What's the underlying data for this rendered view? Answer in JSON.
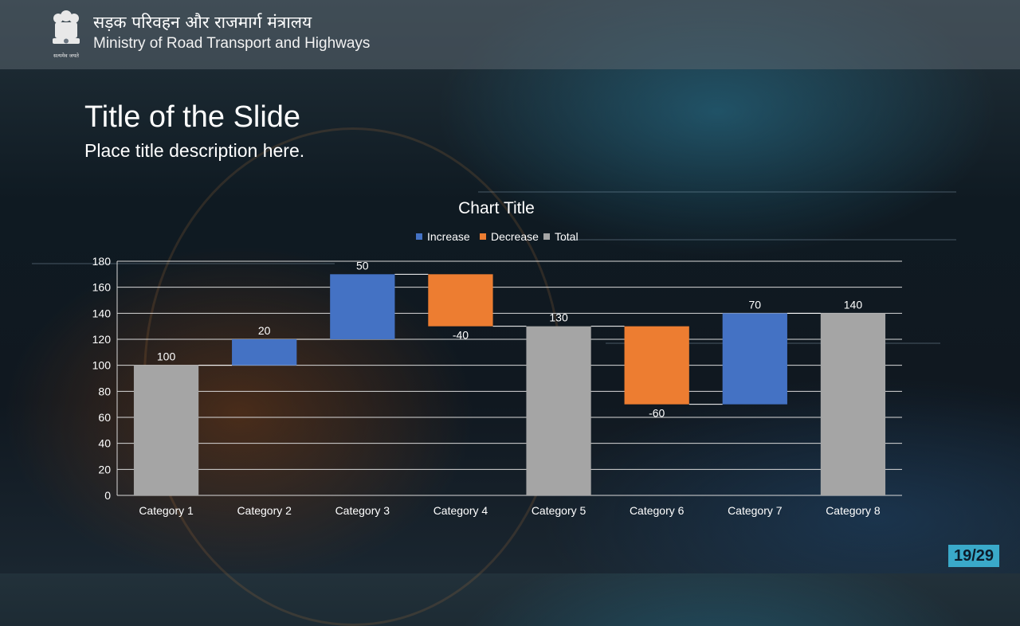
{
  "header": {
    "hindi_title": "सड़क परिवहन और राजमार्ग मंत्रालय",
    "english_title": "Ministry of Road Transport and Highways",
    "emblem_motto": "सत्यमेव जयते"
  },
  "slide": {
    "title": "Title of the Slide",
    "subtitle": "Place title description here.",
    "page_badge": "19/29"
  },
  "colors": {
    "increase": "#4472c4",
    "decrease": "#ed7d31",
    "total": "#a5a5a5",
    "page_badge": "#3aa9c9"
  },
  "chart_data": {
    "type": "waterfall",
    "title": "Chart Title",
    "legend": [
      "Increase",
      "Decrease",
      "Total"
    ],
    "legend_position": "top",
    "categories": [
      "Category 1",
      "Category 2",
      "Category 3",
      "Category 4",
      "Category 5",
      "Category 6",
      "Category 7",
      "Category 8"
    ],
    "values": [
      100,
      20,
      50,
      -40,
      130,
      -60,
      70,
      140
    ],
    "kinds": [
      "total",
      "increase",
      "increase",
      "decrease",
      "total",
      "decrease",
      "increase",
      "total"
    ],
    "data_labels": [
      "100",
      "20",
      "50",
      "-40",
      "130",
      "-60",
      "70",
      "140"
    ],
    "ylim": [
      0,
      180
    ],
    "y_ticks": [
      0,
      20,
      40,
      60,
      80,
      100,
      120,
      140,
      160,
      180
    ],
    "grid": true
  }
}
